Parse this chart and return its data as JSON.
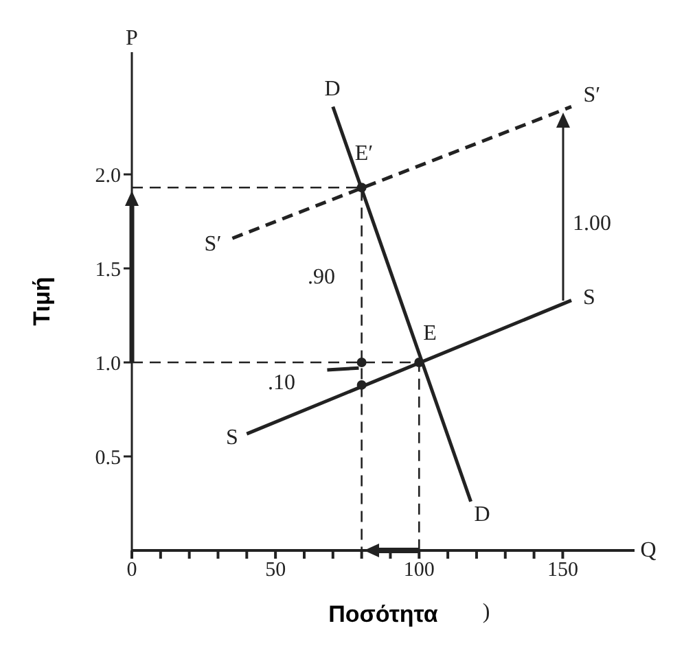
{
  "chart_data": {
    "type": "line",
    "xlabel": "Ποσότητα",
    "ylabel": "Τιμή",
    "xlim": [
      0,
      175
    ],
    "ylim": [
      0,
      2.65
    ],
    "xticks": [
      0,
      {
        "value": 10,
        "label": null
      },
      {
        "value": 20,
        "label": null
      },
      {
        "value": 30,
        "label": null
      },
      {
        "value": 40,
        "label": null
      },
      50,
      {
        "value": 60,
        "label": null
      },
      {
        "value": 70,
        "label": null
      },
      {
        "value": 80,
        "label": null
      },
      {
        "value": 90,
        "label": null
      },
      100,
      {
        "value": 110,
        "label": null
      },
      {
        "value": 120,
        "label": null
      },
      {
        "value": 130,
        "label": null
      },
      {
        "value": 140,
        "label": null
      },
      150
    ],
    "yticks": [
      {
        "value": 0.5,
        "label": "0.5"
      },
      {
        "value": 1,
        "label": "1.0"
      },
      {
        "value": 1.5,
        "label": "1.5"
      },
      {
        "value": 2,
        "label": "2.0"
      }
    ],
    "grid": false,
    "tick_labels": "xy",
    "series": [
      {
        "color": "#222222",
        "x": [
          70,
          118
        ],
        "values": [
          2.36,
          0.26
        ],
        "line_style": "solid"
      },
      {
        "color": "#222222",
        "x": [
          40,
          153
        ],
        "values": [
          0.62,
          1.33
        ],
        "line_style": "solid"
      },
      {
        "color": "#222222",
        "x": [
          35,
          153
        ],
        "values": [
          1.66,
          2.36
        ],
        "line_style": "dashed"
      },
      {
        "color": "#222222",
        "x": [
          0,
          80,
          80
        ],
        "values": [
          1.93,
          1.93,
          0
        ],
        "line_style": "dashed"
      },
      {
        "color": "#222222",
        "x": [
          0,
          100,
          100
        ],
        "values": [
          1,
          1,
          0
        ],
        "line_style": "dashed"
      },
      {
        "color": "#222222",
        "x": [
          68,
          79
        ],
        "values": [
          0.96,
          0.97
        ],
        "line_style": "solid"
      },
      {
        "type": "scatter",
        "color": "#222222",
        "x": [
          80,
          100,
          80,
          80
        ],
        "values": [
          1.93,
          1,
          1,
          0.88
        ],
        "marker": "circle"
      }
    ],
    "annotations": [
      "P",
      "Q",
      "D",
      "E′",
      {
        "text": "S′",
        "x": 153,
        "y": 2.36
      },
      "S′",
      "1.00",
      ".90",
      "S",
      "E",
      ".10",
      "S",
      "D",
      ")"
    ]
  }
}
